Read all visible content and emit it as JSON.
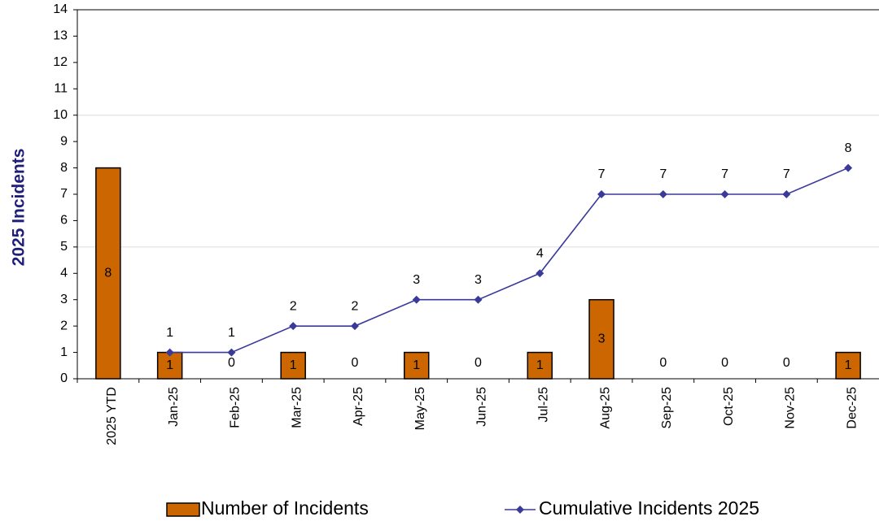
{
  "chart_data": {
    "type": "bar_line",
    "y_label": "2025 Incidents",
    "categories": [
      "2025 YTD",
      "Jan-25",
      "Feb-25",
      "Mar-25",
      "Apr-25",
      "May-25",
      "Jun-25",
      "Jul-25",
      "Aug-25",
      "Sep-25",
      "Oct-25",
      "Nov-25",
      "Dec-25"
    ],
    "series": [
      {
        "name": "Number of Incidents",
        "type": "bar",
        "color": "#cc6600",
        "values": [
          8,
          1,
          0,
          1,
          0,
          1,
          0,
          1,
          3,
          0,
          0,
          0,
          1
        ]
      },
      {
        "name": "Cumulative Incidents 2025",
        "type": "line",
        "color": "#3a3a9a",
        "values": [
          null,
          1,
          1,
          2,
          2,
          3,
          3,
          4,
          7,
          7,
          7,
          7,
          8
        ]
      }
    ],
    "ylim": [
      0,
      14
    ],
    "yticks": [
      0,
      1,
      2,
      3,
      4,
      5,
      6,
      7,
      8,
      9,
      10,
      11,
      12,
      13,
      14
    ],
    "grid": [
      5,
      10
    ],
    "legend": "bottom"
  }
}
